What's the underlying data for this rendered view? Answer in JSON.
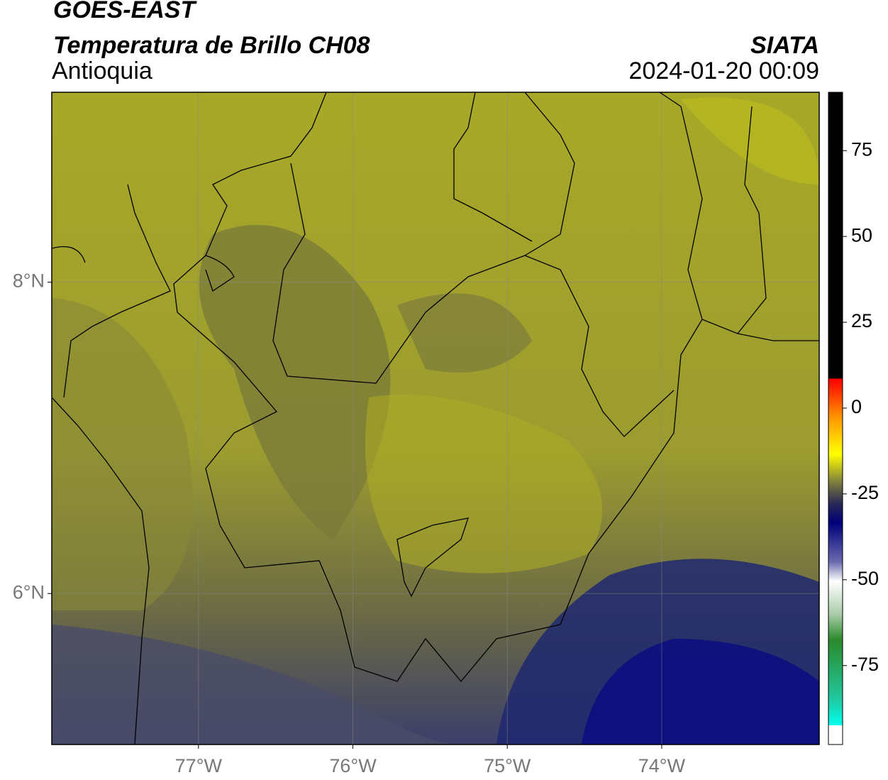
{
  "map": {
    "title": "GOES-EAST",
    "subtitle": "Temperatura de Brillo CH08",
    "region": "Antioquia",
    "source": "SIATA",
    "timestamp": "2024-01-20 00:09",
    "lonlim": [
      -77.95,
      -72.98
    ],
    "latlim": [
      5.03,
      9.22
    ],
    "lonticks": [
      {
        "value": -77,
        "label": "77°W"
      },
      {
        "value": -76,
        "label": "76°W"
      },
      {
        "value": -75,
        "label": "75°W"
      },
      {
        "value": -74,
        "label": "74°W"
      }
    ],
    "latticks": [
      {
        "value": 8,
        "label": "8°N"
      },
      {
        "value": 6,
        "label": "6°N"
      }
    ],
    "grid": true,
    "colorbar": {
      "lim": [
        -98,
        92
      ],
      "ticks": [
        75,
        50,
        25,
        0,
        -25,
        -50,
        -75
      ]
    }
  }
}
